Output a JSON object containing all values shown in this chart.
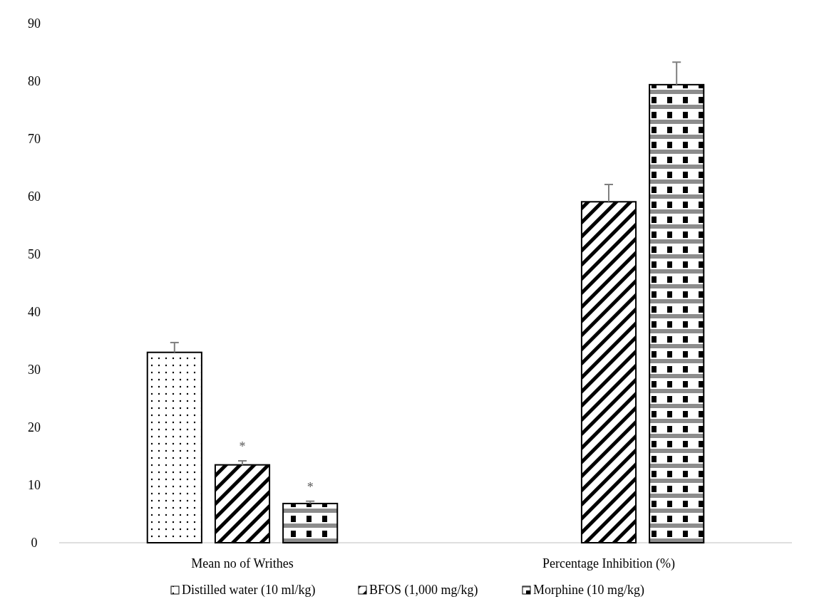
{
  "chart_data": {
    "type": "bar",
    "categories": [
      "Mean no of Writhes",
      "Percentage Inhibition (%)"
    ],
    "series": [
      {
        "name": "Distilled water (10 ml/kg)",
        "color": "#000000",
        "values": [
          33.0,
          null
        ],
        "errors": [
          1.7,
          null
        ]
      },
      {
        "name": "BFOS (1,000 mg/kg)",
        "color": "#000000",
        "values": [
          13.5,
          59.1
        ],
        "errors": [
          0.7,
          3.0
        ]
      },
      {
        "name": "Morphine (10 mg/kg)",
        "color": "#000000",
        "values": [
          6.8,
          79.4
        ],
        "errors": [
          0.4,
          3.9
        ]
      }
    ],
    "ylim": [
      0,
      90
    ],
    "yticks": [
      0,
      10,
      20,
      30,
      40,
      50,
      60,
      70,
      80,
      90
    ],
    "grid": false,
    "legend": "bottom",
    "annotations": [
      "*",
      "*"
    ]
  }
}
